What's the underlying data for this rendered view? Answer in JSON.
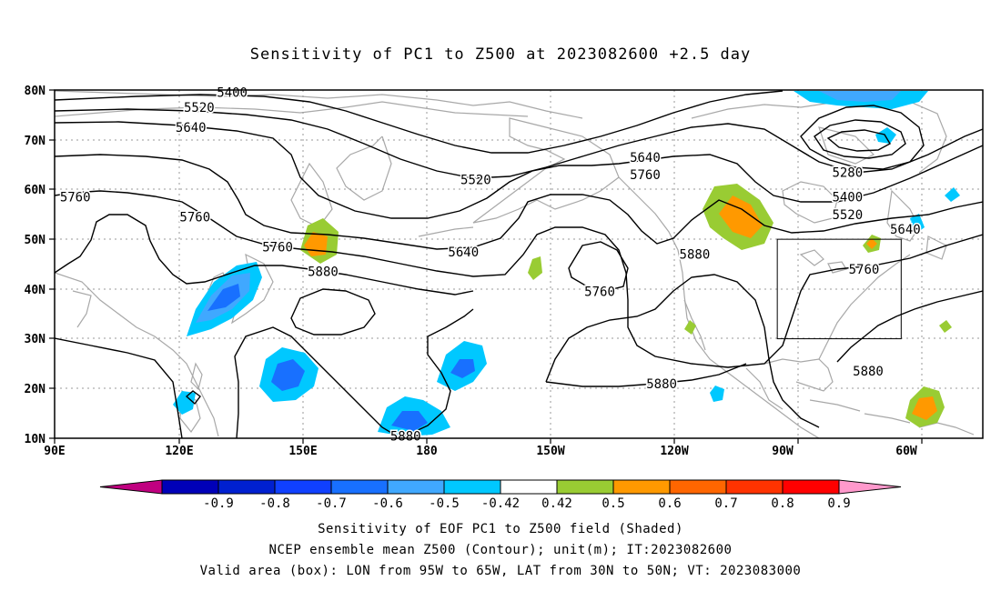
{
  "title": "Sensitivity of PC1 to Z500 at 2023082600 +2.5 day",
  "map": {
    "lon_labels": [
      "90E",
      "120E",
      "150E",
      "180",
      "150W",
      "120W",
      "90W",
      "60W"
    ],
    "lat_labels": [
      "10N",
      "20N",
      "30N",
      "40N",
      "50N",
      "60N",
      "70N",
      "80N"
    ],
    "contour_labels": [
      {
        "text": "5400",
        "lon": 133,
        "lat": 79.5
      },
      {
        "text": "5520",
        "lon": 125,
        "lat": 76.5
      },
      {
        "text": "5640",
        "lon": 123,
        "lat": 72.5
      },
      {
        "text": "5760",
        "lon": 95,
        "lat": 58.5
      },
      {
        "text": "5760",
        "lon": 124,
        "lat": 54.5
      },
      {
        "text": "5760",
        "lon": 144,
        "lat": 48.5
      },
      {
        "text": "5880",
        "lon": 155,
        "lat": 43.5
      },
      {
        "text": "5520",
        "lon": 192,
        "lat": 62
      },
      {
        "text": "5640",
        "lon": 189,
        "lat": 47.5
      },
      {
        "text": "5640",
        "lon": 233,
        "lat": 66.5
      },
      {
        "text": "5760",
        "lon": 233,
        "lat": 63
      },
      {
        "text": "5760",
        "lon": 222,
        "lat": 39.5
      },
      {
        "text": "5880",
        "lon": 245,
        "lat": 47
      },
      {
        "text": "5880",
        "lon": 237,
        "lat": 21
      },
      {
        "text": "5880",
        "lon": 175,
        "lat": 10.5
      },
      {
        "text": "5280",
        "lon": 282,
        "lat": 63.5
      },
      {
        "text": "5400",
        "lon": 282,
        "lat": 58.5
      },
      {
        "text": "5520",
        "lon": 282,
        "lat": 55
      },
      {
        "text": "5640",
        "lon": 296,
        "lat": 52
      },
      {
        "text": "5760",
        "lon": 286,
        "lat": 44
      },
      {
        "text": "5880",
        "lon": 287,
        "lat": 23.5
      }
    ],
    "valid_box": {
      "lon_w": -95,
      "lon_e": -65,
      "lat_s": 30,
      "lat_n": 50
    }
  },
  "colorbar": {
    "labels": [
      "-0.9",
      "-0.8",
      "-0.7",
      "-0.6",
      "-0.5",
      "-0.42",
      "0.42",
      "0.5",
      "0.6",
      "0.7",
      "0.8",
      "0.9"
    ],
    "colors": [
      "#c00080",
      "#0000b8",
      "#0020d0",
      "#1040ff",
      "#1870ff",
      "#40a8ff",
      "#00c8ff",
      "#ffffff",
      "#99cc33",
      "#ff9900",
      "#ff6600",
      "#ff3300",
      "#ff0000",
      "#ff99cc"
    ]
  },
  "captions": {
    "line1": "Sensitivity of EOF PC1 to Z500 field (Shaded)",
    "line2": "NCEP ensemble mean Z500 (Contour); unit(m); IT:2023082600",
    "line3": "Valid area (box): LON from 95W to 65W, LAT from 30N to 50N; VT: 2023083000"
  }
}
